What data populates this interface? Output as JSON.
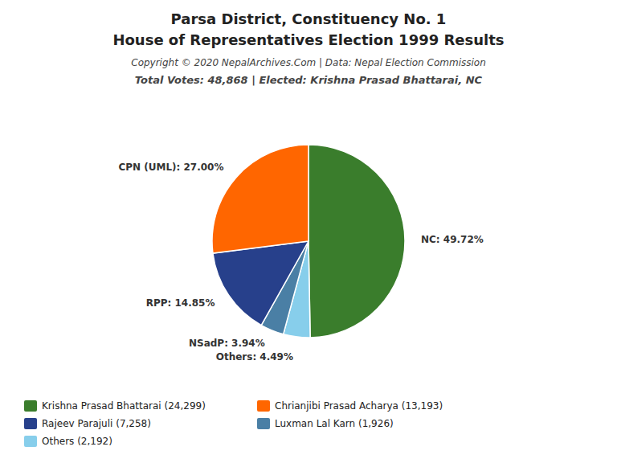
{
  "chart_data": {
    "type": "pie",
    "title": "Parsa District, Constituency No. 1",
    "subtitle": "House of Representatives Election 1999 Results",
    "annotations": [
      "Copyright © 2020 NepalArchives.Com | Data: Nepal Election Commission",
      "Total Votes: 48,868 | Elected: Krishna Prasad Bhattarai, NC"
    ],
    "values": [
      49.72,
      4.49,
      3.94,
      14.85,
      27.0
    ],
    "value_labels": [
      "NC: 49.72%",
      "Others: 4.49%",
      "NSadP: 3.94%",
      "RPP: 14.85%",
      "CPN (UML): 27.00%"
    ],
    "colors": [
      "#3a7d2c",
      "#87CEEB",
      "#4a7fa5",
      "#27408B",
      "#FF6600"
    ],
    "data_labels": true,
    "legend": "lower left",
    "legend_entries": [
      {
        "name": "Krishna Prasad Bhattarai (24,299)",
        "color": "#3a7d2c"
      },
      {
        "name": "Chrianjibi Prasad Acharya (13,193)",
        "color": "#FF6600"
      },
      {
        "name": "Rajeev Parajuli (7,258)",
        "color": "#27408B"
      },
      {
        "name": "Luxman Lal Karn (1,926)",
        "color": "#4a7fa5"
      },
      {
        "name": "Others (2,192)",
        "color": "#87CEEB"
      }
    ]
  }
}
